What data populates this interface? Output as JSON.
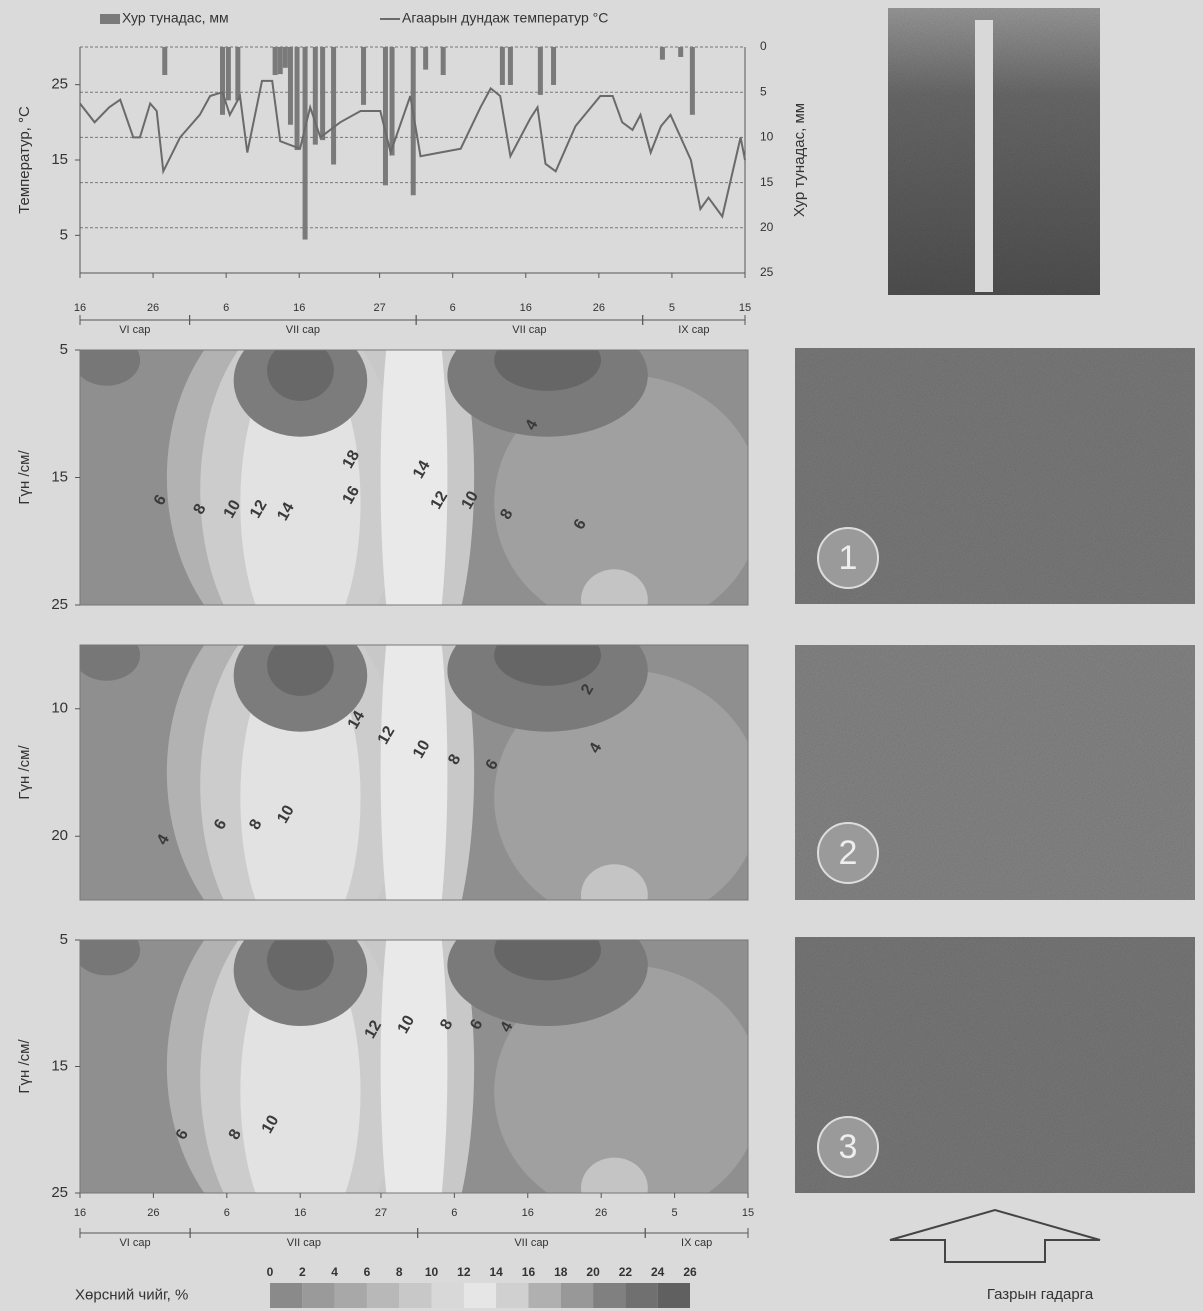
{
  "chart_data": [
    {
      "type": "combo",
      "ylabel": "Температур, °C",
      "y2label": "Хур тунадас, мм",
      "xlim": [
        0,
        91
      ],
      "ylim": [
        0,
        30
      ],
      "y2lim": [
        0,
        25
      ],
      "y2_inverted": true,
      "grid": true,
      "yticks": [
        5,
        15,
        25
      ],
      "y2ticks": [
        0,
        5,
        10,
        15,
        20,
        25
      ],
      "xticks": [
        {
          "value": 0,
          "label": "16"
        },
        {
          "value": 10,
          "label": "26"
        },
        {
          "value": 20,
          "label": "6"
        },
        {
          "value": 30,
          "label": "16"
        },
        {
          "value": 41,
          "label": "27"
        },
        {
          "value": 51,
          "label": "6"
        },
        {
          "value": 61,
          "label": "16"
        },
        {
          "value": 71,
          "label": "26"
        },
        {
          "value": 81,
          "label": "5"
        },
        {
          "value": 91,
          "label": "15"
        }
      ],
      "months": [
        {
          "label": "VI сар",
          "start": 0,
          "end": 15
        },
        {
          "label": "VII сар",
          "start": 15,
          "end": 46
        },
        {
          "label": "VII сар",
          "start": 46,
          "end": 77
        },
        {
          "label": "IX сар",
          "start": 77,
          "end": 91
        }
      ],
      "series": [
        {
          "name": "Хур тунадас, мм",
          "type": "bar",
          "axis": "y2",
          "color": "#7a7a7a",
          "x": [
            11.6,
            19.5,
            20.3,
            21.6,
            26.7,
            27.4,
            28.1,
            28.8,
            29.7,
            30.8,
            32.2,
            33.2,
            34.7,
            38.8,
            41.8,
            42.7,
            45.6,
            47.3,
            49.7,
            57.8,
            58.9,
            63,
            64.8,
            79.7,
            82.2,
            83.8
          ],
          "values": [
            3.1,
            7.5,
            5.9,
            5.9,
            3.1,
            3,
            2.3,
            8.6,
            11.4,
            21.3,
            10.8,
            10.3,
            13,
            6.4,
            15.3,
            12,
            16.4,
            2.5,
            3.1,
            4.2,
            4.2,
            5.3,
            4.2,
            1.4,
            1.1,
            7.5
          ]
        },
        {
          "name": "Агаарын дундаж температур °C",
          "type": "line",
          "color": "#6a6a6a",
          "x": [
            0,
            2,
            4,
            5.5,
            7.3,
            8.2,
            9.6,
            10.5,
            11.4,
            13.7,
            16.4,
            17.8,
            19.5,
            20.5,
            21.9,
            22.9,
            24.9,
            26.3,
            27.4,
            30.1,
            31.5,
            32.9,
            35.6,
            38.4,
            41.1,
            42.5,
            45.2,
            46.6,
            49.3,
            52.1,
            54.8,
            56.2,
            57.5,
            58.9,
            61.6,
            62.6,
            63.7,
            65.1,
            67.8,
            71.2,
            72.9,
            74.2,
            75.6,
            76.7,
            78.1,
            79.5,
            80.8,
            83.6,
            84.9,
            86,
            87.9,
            90.4,
            91
          ],
          "values": [
            22.5,
            20,
            22,
            23,
            18,
            18,
            22.5,
            21.5,
            13.5,
            18,
            21,
            23.5,
            24,
            21,
            23.5,
            16,
            25.5,
            25.5,
            17.5,
            16.5,
            22,
            18,
            20,
            21.5,
            21.5,
            16,
            23.5,
            15.5,
            16,
            16.5,
            22,
            24.5,
            23.5,
            15.5,
            20.5,
            22,
            14.5,
            13.5,
            19.5,
            23.5,
            23.5,
            20,
            19,
            21,
            16,
            19.5,
            21,
            15,
            8.5,
            10,
            7.5,
            18,
            15
          ]
        }
      ]
    },
    {
      "type": "contour",
      "ylabel": "Гүн /см/",
      "xlim": [
        0,
        91
      ],
      "ylim": [
        5,
        25
      ],
      "y_inverted": true,
      "yticks": [
        5,
        15,
        25
      ],
      "labels": [
        {
          "value": 18,
          "x": 37,
          "y": 13.6
        },
        {
          "value": 16,
          "x": 37,
          "y": 16.4
        },
        {
          "value": 14,
          "x": 46.6,
          "y": 14.4
        },
        {
          "value": 12,
          "x": 49,
          "y": 16.8
        },
        {
          "value": 10,
          "x": 53.2,
          "y": 16.8
        },
        {
          "value": 8,
          "x": 58.2,
          "y": 17.9
        },
        {
          "value": 6,
          "x": 68.2,
          "y": 18.7
        },
        {
          "value": 4,
          "x": 61.6,
          "y": 10.9
        },
        {
          "value": 6,
          "x": 11,
          "y": 16.8
        },
        {
          "value": 8,
          "x": 16.4,
          "y": 17.5
        },
        {
          "value": 10,
          "x": 20.8,
          "y": 17.5
        },
        {
          "value": 12,
          "x": 24.4,
          "y": 17.5
        },
        {
          "value": 14,
          "x": 28.1,
          "y": 17.7
        }
      ]
    },
    {
      "type": "contour",
      "ylabel": "Гүн /см/",
      "xlim": [
        0,
        91
      ],
      "ylim": [
        5,
        25
      ],
      "y_inverted": true,
      "yticks": [
        10,
        20
      ],
      "labels": [
        {
          "value": 2,
          "x": 69.2,
          "y": 8.5
        },
        {
          "value": 4,
          "x": 70.3,
          "y": 13.1
        },
        {
          "value": 14,
          "x": 37.7,
          "y": 10.9
        },
        {
          "value": 12,
          "x": 41.8,
          "y": 12.1
        },
        {
          "value": 10,
          "x": 46.6,
          "y": 13.2
        },
        {
          "value": 8,
          "x": 51.1,
          "y": 14
        },
        {
          "value": 6,
          "x": 56.2,
          "y": 14.4
        },
        {
          "value": 10,
          "x": 28.1,
          "y": 18.3
        },
        {
          "value": 8,
          "x": 24,
          "y": 19.1
        },
        {
          "value": 6,
          "x": 19.2,
          "y": 19.1
        },
        {
          "value": 4,
          "x": 11.4,
          "y": 20.3
        }
      ]
    },
    {
      "type": "contour",
      "ylabel": "Гүн /см/",
      "xlim": [
        0,
        91
      ],
      "ylim": [
        5,
        25
      ],
      "y_inverted": true,
      "yticks": [
        5,
        15,
        25
      ],
      "xticks": [
        {
          "value": 0,
          "label": "16"
        },
        {
          "value": 10,
          "label": "26"
        },
        {
          "value": 20,
          "label": "6"
        },
        {
          "value": 30,
          "label": "16"
        },
        {
          "value": 41,
          "label": "27"
        },
        {
          "value": 51,
          "label": "6"
        },
        {
          "value": 61,
          "label": "16"
        },
        {
          "value": 71,
          "label": "26"
        },
        {
          "value": 81,
          "label": "5"
        },
        {
          "value": 91,
          "label": "15"
        }
      ],
      "months": [
        {
          "label": "VI сар",
          "start": 0,
          "end": 15
        },
        {
          "label": "VII сар",
          "start": 15,
          "end": 46
        },
        {
          "label": "VII сар",
          "start": 46,
          "end": 77
        },
        {
          "label": "IX сар",
          "start": 77,
          "end": 91
        }
      ],
      "labels": [
        {
          "value": 12,
          "x": 40,
          "y": 12.1
        },
        {
          "value": 10,
          "x": 44.5,
          "y": 11.7
        },
        {
          "value": 8,
          "x": 50,
          "y": 11.7
        },
        {
          "value": 6,
          "x": 54.1,
          "y": 11.7
        },
        {
          "value": 4,
          "x": 58.2,
          "y": 11.9
        },
        {
          "value": 10,
          "x": 26,
          "y": 19.6
        },
        {
          "value": 8,
          "x": 21.2,
          "y": 20.4
        },
        {
          "value": 6,
          "x": 14,
          "y": 20.4
        }
      ]
    },
    {
      "type": "colorbar",
      "title": "Хөрсний чийг, %",
      "ticks": [
        0,
        2,
        4,
        6,
        8,
        10,
        12,
        14,
        16,
        18,
        20,
        22,
        24,
        26
      ],
      "colors": [
        "#8a8a8a",
        "#9a9a9a",
        "#a8a8a8",
        "#b8b8b8",
        "#c8c8c8",
        "#d8d8d8",
        "#e6e6e6",
        "#d0d0d0",
        "#b0b0b0",
        "#989898",
        "#808080",
        "#707070",
        "#606060"
      ]
    }
  ],
  "photos": {
    "markers": [
      "1",
      "2",
      "3"
    ],
    "caption": "Газрын гадарга"
  }
}
